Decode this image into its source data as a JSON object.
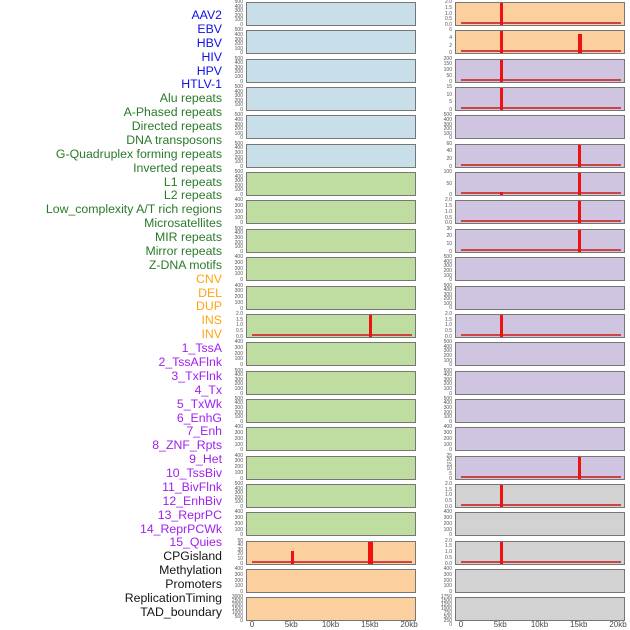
{
  "colors": {
    "label_groups": {
      "virus": "#1010e8",
      "repeat": "#2a7a2a",
      "sv": "#ffa513",
      "chromhmm": "#a020f0",
      "other": "#141414"
    },
    "panel_fills": {
      "blue": "#c8dfe9",
      "green": "#c0dda1",
      "orange": "#fccf9f",
      "purple": "#d0c5e1",
      "gray": "#d2d2d2"
    },
    "spike": "#f01010",
    "baseline": "#cc4444",
    "panel_border": "#767676",
    "axis_text": "#4a4a4a"
  },
  "chart_data": {
    "type": "small-multiples-bar",
    "description_title": "",
    "x_axis": {
      "tick_labels": [
        "0",
        "5kb",
        "10kb",
        "15kb",
        "20kb"
      ],
      "tick_kb": [
        0,
        5,
        10,
        15,
        20
      ],
      "range_kb": [
        0,
        20
      ],
      "shown_under_columns": [
        "left",
        "right"
      ]
    },
    "tracks": [
      {
        "label": "AAV2",
        "group": "virus",
        "column": "left",
        "panel": "blue",
        "yticks": [
          "500",
          "400",
          "300",
          "200",
          "100",
          "0"
        ],
        "baseline": false,
        "spikes": []
      },
      {
        "label": "EBV",
        "group": "virus",
        "column": "left",
        "panel": "blue",
        "yticks": [
          "500",
          "400",
          "300",
          "200",
          "100",
          "0"
        ],
        "baseline": false,
        "spikes": []
      },
      {
        "label": "HBV",
        "group": "virus",
        "column": "left",
        "panel": "blue",
        "yticks": [
          "500",
          "400",
          "300",
          "200",
          "100",
          "0"
        ],
        "baseline": false,
        "spikes": []
      },
      {
        "label": "HIV",
        "group": "virus",
        "column": "left",
        "panel": "blue",
        "yticks": [
          "500",
          "400",
          "300",
          "200",
          "100",
          "0"
        ],
        "baseline": false,
        "spikes": []
      },
      {
        "label": "HPV",
        "group": "virus",
        "column": "left",
        "panel": "blue",
        "yticks": [
          "500",
          "400",
          "300",
          "200",
          "100",
          "0"
        ],
        "baseline": false,
        "spikes": []
      },
      {
        "label": "HTLV-1",
        "group": "virus",
        "column": "left",
        "panel": "blue",
        "yticks": [
          "500",
          "400",
          "300",
          "200",
          "100",
          "0"
        ],
        "baseline": false,
        "spikes": []
      },
      {
        "label": "Alu repeats",
        "group": "repeat",
        "column": "left",
        "panel": "green",
        "yticks": [
          "500",
          "400",
          "300",
          "200",
          "100",
          "0"
        ],
        "baseline": false,
        "spikes": []
      },
      {
        "label": "A-Phased repeats",
        "group": "repeat",
        "column": "left",
        "panel": "green",
        "yticks": [
          "400",
          "300",
          "200",
          "100",
          "0"
        ],
        "baseline": false,
        "spikes": []
      },
      {
        "label": "Directed repeats",
        "group": "repeat",
        "column": "left",
        "panel": "green",
        "yticks": [
          "500",
          "400",
          "300",
          "200",
          "100",
          "0"
        ],
        "baseline": false,
        "spikes": []
      },
      {
        "label": "DNA transposons",
        "group": "repeat",
        "column": "left",
        "panel": "green",
        "yticks": [
          "400",
          "300",
          "200",
          "100",
          "0"
        ],
        "baseline": false,
        "spikes": []
      },
      {
        "label": "G-Quadruplex forming repeats",
        "group": "repeat",
        "column": "left",
        "panel": "green",
        "yticks": [
          "400",
          "300",
          "200",
          "100",
          "0"
        ],
        "baseline": false,
        "spikes": []
      },
      {
        "label": "Inverted repeats",
        "group": "repeat",
        "column": "left",
        "panel": "green",
        "yticks": [
          "2.0",
          "1.5",
          "1.0",
          "0.5",
          "0.0"
        ],
        "baseline": true,
        "spikes": [
          {
            "kb": 15,
            "h": 1.0,
            "w": 3
          }
        ]
      },
      {
        "label": "L1 repeats",
        "group": "repeat",
        "column": "left",
        "panel": "green",
        "yticks": [
          "400",
          "300",
          "200",
          "100",
          "0"
        ],
        "baseline": false,
        "spikes": []
      },
      {
        "label": "L2 repeats",
        "group": "repeat",
        "column": "left",
        "panel": "green",
        "yticks": [
          "500",
          "400",
          "300",
          "200",
          "100",
          "0"
        ],
        "baseline": false,
        "spikes": []
      },
      {
        "label": "Low_complexity A/T rich regions",
        "group": "repeat",
        "column": "left",
        "panel": "green",
        "yticks": [
          "500",
          "400",
          "300",
          "200",
          "100",
          "0"
        ],
        "baseline": false,
        "spikes": []
      },
      {
        "label": "Microsatellites",
        "group": "repeat",
        "column": "left",
        "panel": "green",
        "yticks": [
          "400",
          "300",
          "200",
          "100",
          "0"
        ],
        "baseline": false,
        "spikes": []
      },
      {
        "label": "MIR repeats",
        "group": "repeat",
        "column": "left",
        "panel": "green",
        "yticks": [
          "400",
          "300",
          "200",
          "100",
          "0"
        ],
        "baseline": false,
        "spikes": []
      },
      {
        "label": "Mirror repeats",
        "group": "repeat",
        "column": "left",
        "panel": "green",
        "yticks": [
          "500",
          "400",
          "300",
          "200",
          "100",
          "0"
        ],
        "baseline": false,
        "spikes": []
      },
      {
        "label": "Z-DNA motifs",
        "group": "repeat",
        "column": "left",
        "panel": "green",
        "yticks": [
          "400",
          "300",
          "200",
          "100",
          "0"
        ],
        "baseline": false,
        "spikes": []
      },
      {
        "label": "CNV",
        "group": "sv",
        "column": "left",
        "panel": "orange",
        "yticks": [
          "50",
          "40",
          "30",
          "20",
          "10",
          "0"
        ],
        "baseline": true,
        "spikes": [
          {
            "kb": 5,
            "h": 0.58,
            "w": 3
          },
          {
            "kb": 15,
            "h": 1.0,
            "w": 5
          }
        ]
      },
      {
        "label": "DEL",
        "group": "sv",
        "column": "left",
        "panel": "orange",
        "yticks": [
          "400",
          "300",
          "200",
          "100",
          "0"
        ],
        "baseline": false,
        "spikes": []
      },
      {
        "label": "DUP",
        "group": "sv",
        "column": "left",
        "panel": "orange",
        "yticks": [
          "3000",
          "2500",
          "2000",
          "1500",
          "1000",
          "500",
          "0"
        ],
        "baseline": false,
        "spikes": []
      },
      {
        "label": "INS",
        "group": "sv",
        "column": "right",
        "panel": "orange",
        "yticks": [
          "2.0",
          "1.5",
          "1.0",
          "0.5",
          "0.0"
        ],
        "baseline": true,
        "spikes": [
          {
            "kb": 5,
            "h": 1.0,
            "w": 3
          }
        ]
      },
      {
        "label": "INV",
        "group": "sv",
        "column": "right",
        "panel": "orange",
        "yticks": [
          "6",
          "4",
          "2",
          "0"
        ],
        "baseline": true,
        "spikes": [
          {
            "kb": 5,
            "h": 1.0,
            "w": 3
          },
          {
            "kb": 15,
            "h": 0.9,
            "w": 4
          }
        ]
      },
      {
        "label": "1_TssA",
        "group": "chromhmm",
        "column": "right",
        "panel": "purple",
        "yticks": [
          "200",
          "150",
          "100",
          "50",
          "0"
        ],
        "baseline": true,
        "spikes": [
          {
            "kb": 5,
            "h": 1.0,
            "w": 3
          }
        ]
      },
      {
        "label": "2_TssAFlnk",
        "group": "chromhmm",
        "column": "right",
        "panel": "purple",
        "yticks": [
          "15",
          "10",
          "5",
          "0"
        ],
        "baseline": true,
        "spikes": [
          {
            "kb": 5,
            "h": 1.0,
            "w": 3
          }
        ]
      },
      {
        "label": "3_TxFlnk",
        "group": "chromhmm",
        "column": "right",
        "panel": "purple",
        "yticks": [
          "500",
          "400",
          "300",
          "200",
          "100",
          "0"
        ],
        "baseline": false,
        "spikes": []
      },
      {
        "label": "4_Tx",
        "group": "chromhmm",
        "column": "right",
        "panel": "purple",
        "yticks": [
          "60",
          "40",
          "20",
          "0"
        ],
        "baseline": true,
        "spikes": [
          {
            "kb": 15,
            "h": 1.0,
            "w": 3
          }
        ]
      },
      {
        "label": "5_TxWk",
        "group": "chromhmm",
        "column": "right",
        "panel": "purple",
        "yticks": [
          "100",
          "50",
          "0"
        ],
        "baseline": true,
        "spikes": [
          {
            "kb": 5,
            "h": 0.12,
            "w": 3
          },
          {
            "kb": 15,
            "h": 1.0,
            "w": 3
          }
        ]
      },
      {
        "label": "6_EnhG",
        "group": "chromhmm",
        "column": "right",
        "panel": "purple",
        "yticks": [
          "2.0",
          "1.5",
          "1.0",
          "0.5",
          "0.0"
        ],
        "baseline": true,
        "spikes": [
          {
            "kb": 15,
            "h": 1.0,
            "w": 3
          }
        ]
      },
      {
        "label": "7_Enh",
        "group": "chromhmm",
        "column": "right",
        "panel": "purple",
        "yticks": [
          "30",
          "20",
          "10",
          "0"
        ],
        "baseline": true,
        "spikes": [
          {
            "kb": 15,
            "h": 1.0,
            "w": 3
          }
        ]
      },
      {
        "label": "8_ZNF_Rpts",
        "group": "chromhmm",
        "column": "right",
        "panel": "purple",
        "yticks": [
          "500",
          "400",
          "300",
          "200",
          "100",
          "0"
        ],
        "baseline": false,
        "spikes": []
      },
      {
        "label": "9_Het",
        "group": "chromhmm",
        "column": "right",
        "panel": "purple",
        "yticks": [
          "500",
          "400",
          "300",
          "200",
          "100",
          "0"
        ],
        "baseline": false,
        "spikes": []
      },
      {
        "label": "10_TssBiv",
        "group": "chromhmm",
        "column": "right",
        "panel": "purple",
        "yticks": [
          "2.0",
          "1.5",
          "1.0",
          "0.5",
          "0.0"
        ],
        "baseline": true,
        "spikes": [
          {
            "kb": 5,
            "h": 1.0,
            "w": 3
          }
        ]
      },
      {
        "label": "11_BivFlnk",
        "group": "chromhmm",
        "column": "right",
        "panel": "purple",
        "yticks": [
          "500",
          "400",
          "300",
          "200",
          "100",
          "0"
        ],
        "baseline": false,
        "spikes": []
      },
      {
        "label": "12_EnhBiv",
        "group": "chromhmm",
        "column": "right",
        "panel": "purple",
        "yticks": [
          "500",
          "400",
          "300",
          "200",
          "100",
          "0"
        ],
        "baseline": false,
        "spikes": []
      },
      {
        "label": "13_ReprPC",
        "group": "chromhmm",
        "column": "right",
        "panel": "purple",
        "yticks": [
          "500",
          "400",
          "300",
          "200",
          "100",
          "0"
        ],
        "baseline": false,
        "spikes": []
      },
      {
        "label": "14_ReprPCWk",
        "group": "chromhmm",
        "column": "right",
        "panel": "purple",
        "yticks": [
          "400",
          "300",
          "200",
          "100",
          "0"
        ],
        "baseline": false,
        "spikes": []
      },
      {
        "label": "15_Quies",
        "group": "chromhmm",
        "column": "right",
        "panel": "purple",
        "yticks": [
          "25",
          "20",
          "15",
          "10",
          "5",
          "0"
        ],
        "baseline": true,
        "spikes": [
          {
            "kb": 15,
            "h": 1.0,
            "w": 3
          }
        ]
      },
      {
        "label": "CPGisland",
        "group": "other",
        "column": "right",
        "panel": "gray",
        "yticks": [
          "2.0",
          "1.5",
          "1.0",
          "0.5",
          "0.0"
        ],
        "baseline": true,
        "spikes": [
          {
            "kb": 5,
            "h": 1.0,
            "w": 3
          }
        ]
      },
      {
        "label": "Methylation",
        "group": "other",
        "column": "right",
        "panel": "gray",
        "yticks": [
          "400",
          "300",
          "200",
          "100",
          "0"
        ],
        "baseline": false,
        "spikes": []
      },
      {
        "label": "Promoters",
        "group": "other",
        "column": "right",
        "panel": "gray",
        "yticks": [
          "2.0",
          "1.5",
          "1.0",
          "0.5",
          "0.0"
        ],
        "baseline": true,
        "spikes": [
          {
            "kb": 5,
            "h": 1.0,
            "w": 3
          }
        ]
      },
      {
        "label": "ReplicationTiming",
        "group": "other",
        "column": "right",
        "panel": "gray",
        "yticks": [
          "400",
          "300",
          "200",
          "100",
          "0"
        ],
        "baseline": false,
        "spikes": []
      },
      {
        "label": "TAD_boundary",
        "group": "other",
        "column": "right",
        "panel": "gray",
        "yticks": [
          "1750",
          "1500",
          "1250",
          "1000",
          "750",
          "500",
          "250",
          "0"
        ],
        "baseline": false,
        "spikes": []
      }
    ]
  }
}
